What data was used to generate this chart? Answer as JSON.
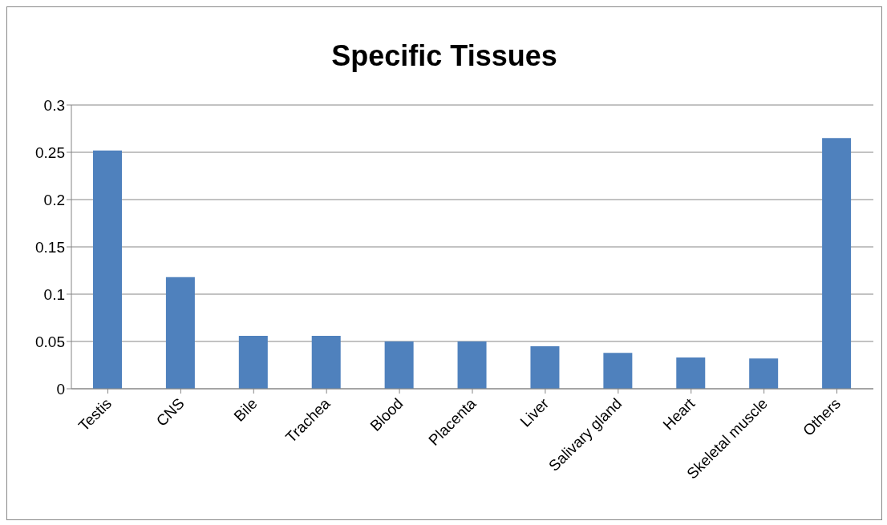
{
  "chart_data": {
    "type": "bar",
    "title": "Specific Tissues",
    "categories": [
      "Testis",
      "CNS",
      "Bile",
      "Trachea",
      "Blood",
      "Placenta",
      "Liver",
      "Salivary gland",
      "Heart",
      "Skeletal muscle",
      "Others"
    ],
    "values": [
      0.252,
      0.118,
      0.056,
      0.056,
      0.05,
      0.05,
      0.045,
      0.038,
      0.033,
      0.032,
      0.265
    ],
    "color": "#4f81bd",
    "ylim": [
      0,
      0.3
    ],
    "yticks": [
      0,
      0.05,
      0.1,
      0.15,
      0.2,
      0.25,
      0.3
    ],
    "grid": "y",
    "legend": false
  }
}
